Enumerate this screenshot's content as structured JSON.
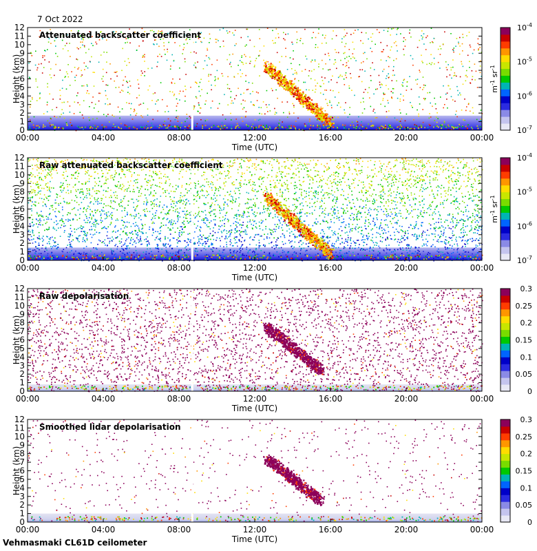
{
  "header": {
    "date": "7 Oct 2022"
  },
  "footer": {
    "site": "Vehmasmaki CL61D ceilometer"
  },
  "colormap": [
    "#e8e8f5",
    "#c4c4ee",
    "#8a8ae6",
    "#2b2be0",
    "#0000c8",
    "#0064ff",
    "#00b4b4",
    "#00c800",
    "#78dc00",
    "#c8e600",
    "#ffdc00",
    "#ff9600",
    "#ff3c00",
    "#c80000",
    "#8c005a"
  ],
  "chart_data": [
    {
      "type": "heatmap",
      "title": "Attenuated backscatter coefficient",
      "xlabel": "Time (UTC)",
      "ylabel": "Height (km)",
      "x_ticks": [
        "00:00",
        "04:00",
        "08:00",
        "12:00",
        "16:00",
        "20:00",
        "00:00"
      ],
      "xlim_hours": [
        0,
        24
      ],
      "y_ticks": [
        "0",
        "1",
        "2",
        "3",
        "4",
        "5",
        "6",
        "7",
        "8",
        "9",
        "10",
        "11",
        "12"
      ],
      "ylim_km": [
        0,
        12
      ],
      "colorbar": {
        "scale": "log",
        "labels": [
          "10-7",
          "10-6",
          "10-5",
          "10-4"
        ],
        "unit": "m-1 sr-1",
        "range": [
          1e-07,
          0.0001
        ]
      },
      "data_gap_hour": 8.7,
      "noise_level": 0.25,
      "surface_layer_km": 1.7,
      "plume": {
        "start_hour": 12.6,
        "start_km": 7.5,
        "end_hour": 16.0,
        "end_km": 0.8
      }
    },
    {
      "type": "heatmap",
      "title": "Raw attenuated backscatter coefficient",
      "xlabel": "Time (UTC)",
      "ylabel": "Height (km)",
      "x_ticks": [
        "00:00",
        "04:00",
        "08:00",
        "12:00",
        "16:00",
        "20:00",
        "00:00"
      ],
      "xlim_hours": [
        0,
        24
      ],
      "y_ticks": [
        "0",
        "1",
        "2",
        "3",
        "4",
        "5",
        "6",
        "7",
        "8",
        "9",
        "10",
        "11",
        "12"
      ],
      "ylim_km": [
        0,
        12
      ],
      "colorbar": {
        "scale": "log",
        "labels": [
          "10-7",
          "10-6",
          "10-5",
          "10-4"
        ],
        "unit": "m-1 sr-1",
        "range": [
          1e-07,
          0.0001
        ]
      },
      "data_gap_hour": 8.7,
      "noise_level": 0.9,
      "surface_layer_km": 1.5,
      "plume": {
        "start_hour": 12.6,
        "start_km": 7.5,
        "end_hour": 16.0,
        "end_km": 0.8
      }
    },
    {
      "type": "heatmap",
      "title": "Raw depolarisation",
      "xlabel": "Time (UTC)",
      "ylabel": "Height (km)",
      "x_ticks": [
        "00:00",
        "04:00",
        "08:00",
        "12:00",
        "16:00",
        "20:00",
        "00:00"
      ],
      "xlim_hours": [
        0,
        24
      ],
      "y_ticks": [
        "0",
        "1",
        "2",
        "3",
        "4",
        "5",
        "6",
        "7",
        "8",
        "9",
        "10",
        "11",
        "12"
      ],
      "ylim_km": [
        0,
        12
      ],
      "colorbar": {
        "scale": "linear",
        "labels": [
          "0",
          "0.05",
          "0.1",
          "0.15",
          "0.2",
          "0.25",
          "0.3"
        ],
        "unit": "",
        "range": [
          0,
          0.3
        ]
      },
      "data_gap_hour": 8.7,
      "noise_level": 0.85,
      "surface_layer_km": 0.8,
      "plume": {
        "start_hour": 12.6,
        "start_km": 7.5,
        "end_hour": 15.5,
        "end_km": 2.5
      }
    },
    {
      "type": "heatmap",
      "title": "Smoothed lidar depolarisation",
      "xlabel": "Time (UTC)",
      "ylabel": "Height (km)",
      "x_ticks": [
        "00:00",
        "04:00",
        "08:00",
        "12:00",
        "16:00",
        "20:00",
        "00:00"
      ],
      "xlim_hours": [
        0,
        24
      ],
      "y_ticks": [
        "0",
        "1",
        "2",
        "3",
        "4",
        "5",
        "6",
        "7",
        "8",
        "9",
        "10",
        "11",
        "12"
      ],
      "ylim_km": [
        0,
        12
      ],
      "colorbar": {
        "scale": "linear",
        "labels": [
          "0",
          "0.05",
          "0.1",
          "0.15",
          "0.2",
          "0.25",
          "0.3"
        ],
        "unit": "",
        "range": [
          0,
          0.3
        ]
      },
      "data_gap_hour": 8.7,
      "noise_level": 0.12,
      "surface_layer_km": 1.0,
      "plume": {
        "start_hour": 12.6,
        "start_km": 7.5,
        "end_hour": 15.5,
        "end_km": 2.5
      }
    }
  ]
}
